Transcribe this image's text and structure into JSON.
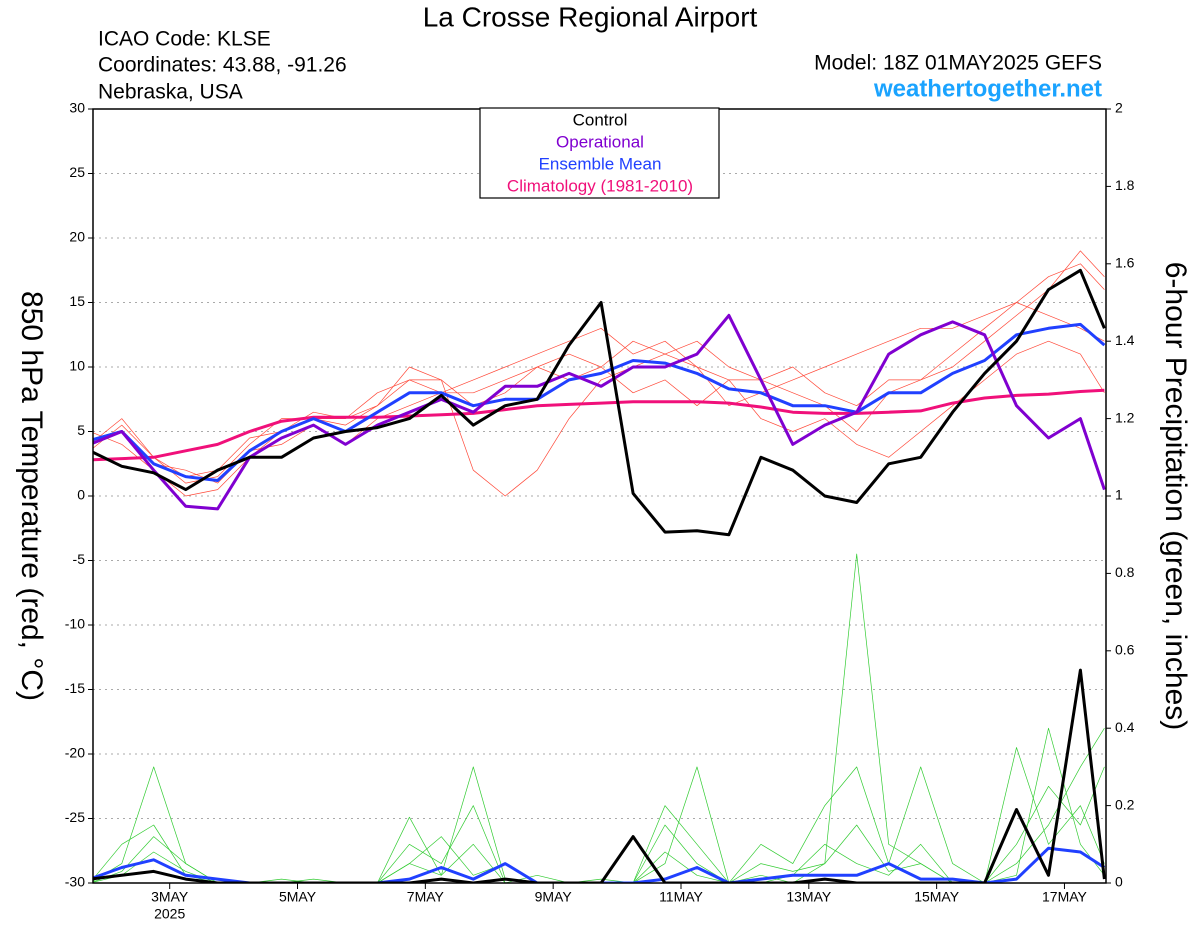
{
  "chart_data": {
    "type": "line",
    "title": "La Crosse Regional Airport",
    "info": [
      "ICAO Code: KLSE",
      "Coordinates: 43.88, -91.26",
      "Nebraska, USA"
    ],
    "model": "Model: 18Z 01MAY2025 GEFS",
    "site": "weathertogether.net",
    "ylabel": "850 hPa Temperature (red, °C)",
    "y2label": "6-hour Precipitation (green, inches)",
    "year_label": "2025",
    "x": [
      1.75,
      2.25,
      2.75,
      3.25,
      3.75,
      4.25,
      4.75,
      5.25,
      5.75,
      6.25,
      6.75,
      7.25,
      7.75,
      8.25,
      8.75,
      9.25,
      9.75,
      10.25,
      10.75,
      11.25,
      11.75,
      12.25,
      12.75,
      13.25,
      13.75,
      14.25,
      14.75,
      15.25,
      15.75,
      16.25,
      16.75,
      17.25,
      17.625
    ],
    "xlim": [
      1.8,
      17.65
    ],
    "xticks": [
      {
        "value": 3,
        "label": "3MAY"
      },
      {
        "value": 5,
        "label": "5MAY"
      },
      {
        "value": 7,
        "label": "7MAY"
      },
      {
        "value": 9,
        "label": "9MAY"
      },
      {
        "value": 11,
        "label": "11MAY"
      },
      {
        "value": 13,
        "label": "13MAY"
      },
      {
        "value": 15,
        "label": "15MAY"
      },
      {
        "value": 17,
        "label": "17MAY"
      }
    ],
    "ylim": [
      -30,
      30
    ],
    "yticks": [
      -30,
      -25,
      -20,
      -15,
      -10,
      -5,
      0,
      5,
      10,
      15,
      20,
      25,
      30
    ],
    "y2lim": [
      0,
      2
    ],
    "y2ticks": [
      0,
      0.2,
      0.4,
      0.6,
      0.8,
      1,
      1.2,
      1.4,
      1.6,
      1.8,
      2
    ],
    "grid": true,
    "series": [
      {
        "color": "#ff4a3a",
        "width": 0.7,
        "values": [
          4,
          6,
          3,
          1,
          1.5,
          4,
          6,
          6,
          5.5,
          7,
          9,
          9,
          7,
          8,
          10,
          11,
          10,
          12,
          11,
          10,
          9,
          9,
          8,
          7,
          5,
          8,
          9,
          11,
          13,
          15,
          17,
          18,
          16
        ]
      },
      {
        "color": "#ff4a3a",
        "width": 0.7,
        "values": [
          5,
          4,
          2,
          0,
          0.5,
          3,
          5,
          6.5,
          6,
          7,
          10,
          9,
          2,
          0,
          2,
          6,
          9,
          10,
          11,
          12,
          10,
          9,
          10,
          8,
          7,
          9,
          9,
          10,
          12,
          14,
          16,
          19,
          17
        ]
      },
      {
        "color": "#ff4a3a",
        "width": 0.7,
        "values": [
          4,
          5,
          2.5,
          2,
          1,
          3.5,
          4,
          5.5,
          4,
          6,
          7,
          8,
          8,
          9,
          10,
          9,
          10,
          8,
          9,
          7,
          9,
          6,
          5,
          6,
          4,
          3,
          5,
          7,
          9,
          11,
          12,
          11,
          8
        ]
      },
      {
        "color": "#ff4a3a",
        "width": 0.7,
        "values": [
          3.5,
          5.5,
          3,
          1.5,
          2,
          4.5,
          5,
          6,
          6,
          8,
          9,
          8,
          9,
          10,
          11,
          12,
          13,
          11,
          12,
          10,
          7,
          8,
          9,
          10,
          11,
          12,
          13,
          13,
          14,
          15,
          14,
          13,
          12
        ]
      },
      {
        "color": "#33cc33",
        "width": 0.7,
        "axis": "y2",
        "values": [
          0,
          0.05,
          0.3,
          0.05,
          0,
          0,
          0,
          0,
          0,
          0,
          0.05,
          0.12,
          0.02,
          0.05,
          0,
          0,
          0,
          0,
          0.05,
          0.3,
          0,
          0.02,
          0,
          0.05,
          0.85,
          0.1,
          0.05,
          0,
          0,
          0.02,
          0.4,
          0.1,
          0.02
        ]
      },
      {
        "color": "#33cc33",
        "width": 0.7,
        "axis": "y2",
        "values": [
          0,
          0.1,
          0.15,
          0.02,
          0,
          0,
          0.01,
          0,
          0,
          0,
          0.17,
          0.02,
          0.3,
          0.01,
          0,
          0,
          0.01,
          0,
          0.15,
          0.05,
          0,
          0.1,
          0.05,
          0.2,
          0.3,
          0.05,
          0.3,
          0.05,
          0,
          0.05,
          0.15,
          0.3,
          0.4
        ]
      },
      {
        "color": "#33cc33",
        "width": 0.7,
        "axis": "y2",
        "values": [
          0,
          0.03,
          0.12,
          0.05,
          0,
          0,
          0,
          0.01,
          0,
          0,
          0.1,
          0.05,
          0.2,
          0,
          0,
          0,
          0,
          0,
          0.2,
          0.1,
          0,
          0,
          0.02,
          0.1,
          0.05,
          0.02,
          0.1,
          0,
          0,
          0.35,
          0.1,
          0.2,
          0.05
        ]
      },
      {
        "color": "#33cc33",
        "width": 0.7,
        "axis": "y2",
        "values": [
          0,
          0.02,
          0.08,
          0.03,
          0,
          0,
          0,
          0,
          0,
          0,
          0.05,
          0.02,
          0.1,
          0,
          0.02,
          0,
          0,
          0,
          0.08,
          0.02,
          0,
          0.05,
          0.03,
          0.05,
          0.15,
          0.03,
          0.05,
          0,
          0,
          0.1,
          0.25,
          0.15,
          0.3
        ]
      },
      {
        "color": "#2040ff",
        "width": 3,
        "axis": "y2",
        "values": [
          0.01,
          0.04,
          0.06,
          0.02,
          0.01,
          0,
          0,
          0,
          0,
          0,
          0.01,
          0.04,
          0.01,
          0.05,
          0,
          0,
          0,
          0,
          0.01,
          0.04,
          0,
          0.01,
          0.02,
          0.02,
          0.02,
          0.05,
          0.01,
          0.01,
          0,
          0.01,
          0.09,
          0.08,
          0.04
        ]
      },
      {
        "color": "#000000",
        "width": 3,
        "axis": "y2",
        "values": [
          0.01,
          0.02,
          0.03,
          0.01,
          0,
          0,
          0,
          0,
          0,
          0,
          0,
          0.01,
          0,
          0.01,
          0,
          0,
          0,
          0.12,
          0,
          0,
          0,
          0,
          0,
          0.01,
          0,
          0,
          0,
          0,
          0,
          0.19,
          0.02,
          0.55,
          0.01
        ]
      },
      {
        "name": "Climatology (1981-2010)",
        "color": "#f0107a",
        "width": 3,
        "values": [
          2.8,
          2.9,
          3,
          3.5,
          4,
          5,
          5.8,
          6.1,
          6.1,
          6.1,
          6.2,
          6.3,
          6.4,
          6.7,
          7,
          7.1,
          7.2,
          7.3,
          7.3,
          7.3,
          7.2,
          6.9,
          6.5,
          6.4,
          6.4,
          6.5,
          6.6,
          7.2,
          7.6,
          7.8,
          7.9,
          8.1,
          8.2
        ]
      },
      {
        "name": "Ensemble Mean",
        "color": "#2040ff",
        "width": 3,
        "values": [
          4.3,
          5,
          2.5,
          1.5,
          1.2,
          3.5,
          5,
          6,
          5,
          6.5,
          8,
          8,
          7,
          7.5,
          7.5,
          9,
          9.5,
          10.5,
          10.3,
          9.5,
          8.3,
          8,
          7,
          7,
          6.5,
          8,
          8,
          9.5,
          10.5,
          12.5,
          13,
          13.3,
          11.7
        ]
      },
      {
        "name": "Operational",
        "color": "#8000d0",
        "width": 3,
        "values": [
          4,
          5,
          2,
          -0.8,
          -1,
          3,
          4.5,
          5.5,
          4,
          5.5,
          6.5,
          7.5,
          6.5,
          8.5,
          8.5,
          9.5,
          8.5,
          10,
          10,
          11,
          14,
          9,
          4,
          5.5,
          6.5,
          11,
          12.5,
          13.5,
          12.5,
          7,
          4.5,
          6,
          0.5
        ]
      },
      {
        "name": "Control",
        "color": "#000000",
        "width": 3,
        "values": [
          3.5,
          2.3,
          1.8,
          0.5,
          2,
          3,
          3,
          4.5,
          5,
          5.3,
          6,
          7.8,
          5.5,
          7,
          7.5,
          11.7,
          15,
          0.2,
          -2.8,
          -2.7,
          -3,
          3,
          2,
          0,
          -0.5,
          2.5,
          3,
          6.5,
          9.5,
          12,
          16,
          17.5,
          13
        ]
      }
    ]
  }
}
